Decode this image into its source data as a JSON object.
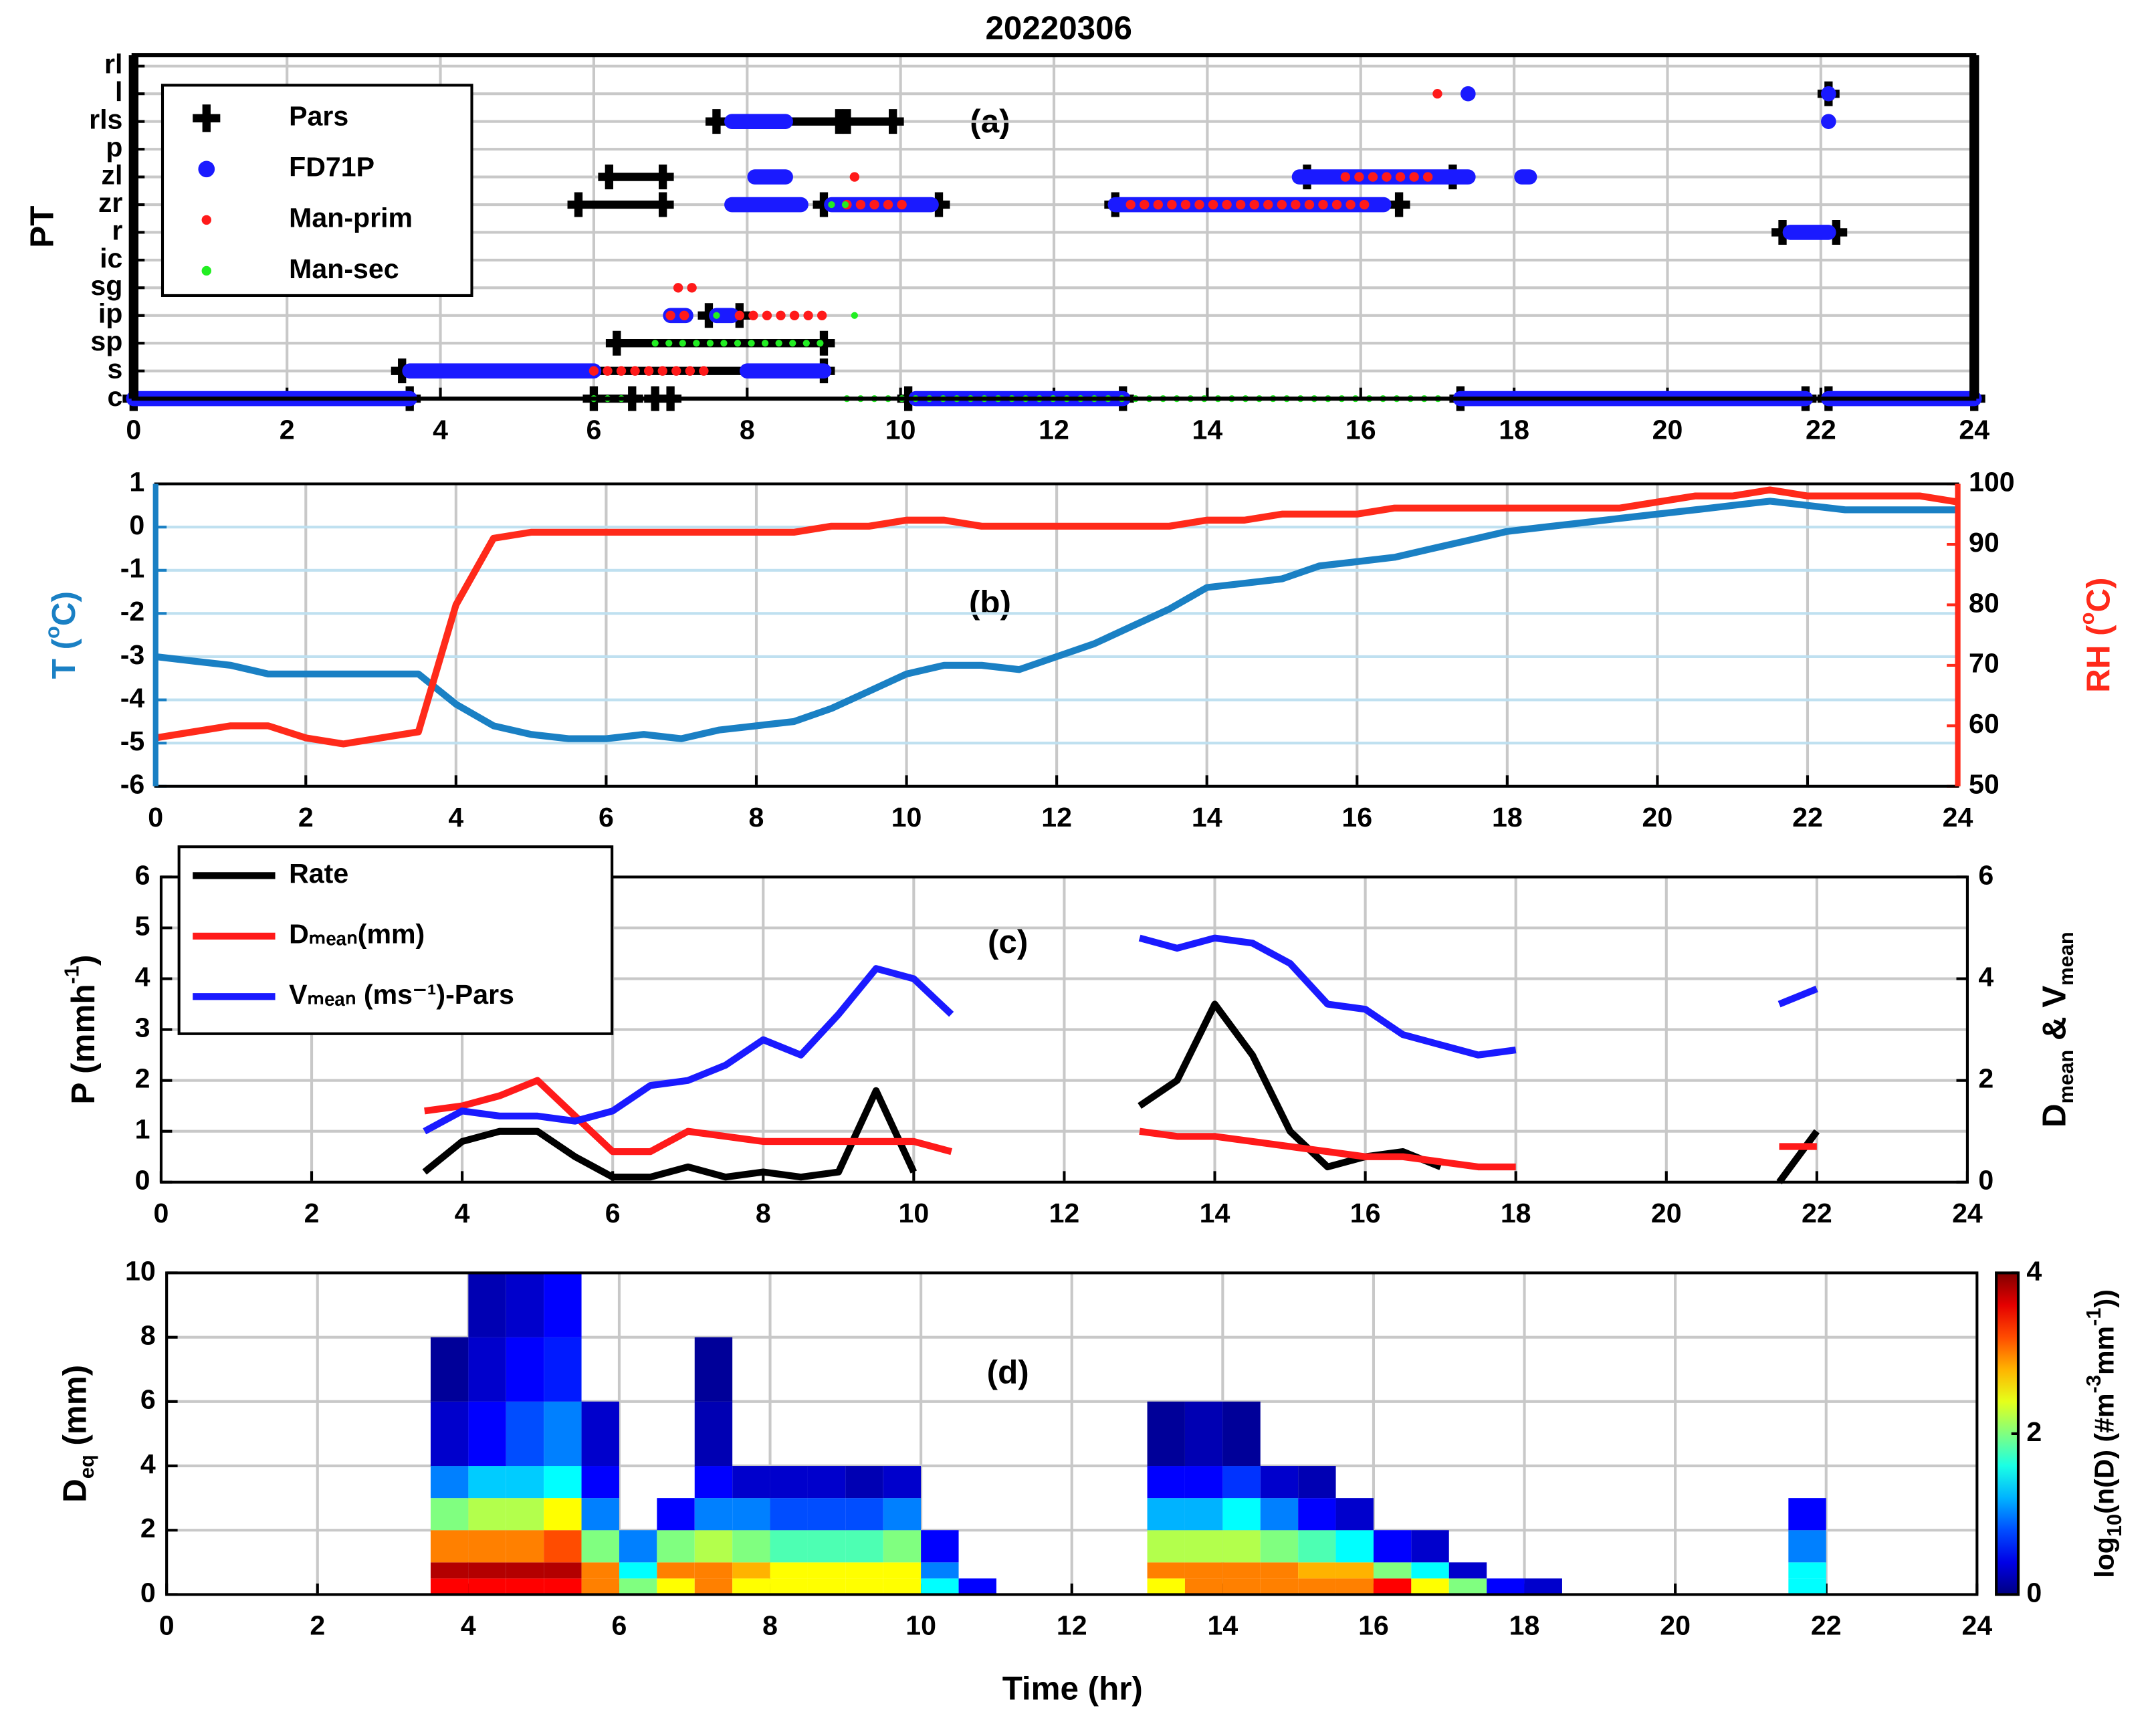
{
  "chart_data": [
    {
      "type": "timeline",
      "title": "20220306",
      "label": "(a)",
      "ylabel": "PT",
      "xlim": [
        0,
        24
      ],
      "xticks": [
        0,
        2,
        4,
        6,
        8,
        10,
        12,
        14,
        16,
        18,
        20,
        22,
        24
      ],
      "ylim": [
        0,
        12.4
      ],
      "yticks": [
        {
          "value": 0,
          "label": "c"
        },
        {
          "value": 1,
          "label": "s"
        },
        {
          "value": 2,
          "label": "sp"
        },
        {
          "value": 3,
          "label": "ip"
        },
        {
          "value": 4,
          "label": "sg"
        },
        {
          "value": 5,
          "label": "ic"
        },
        {
          "value": 6,
          "label": "r"
        },
        {
          "value": 7,
          "label": "zr"
        },
        {
          "value": 8,
          "label": "zl"
        },
        {
          "value": 9,
          "label": "p"
        },
        {
          "value": 10,
          "label": "rls"
        },
        {
          "value": 11,
          "label": "l"
        },
        {
          "value": 12,
          "label": "rl"
        }
      ],
      "grid": true,
      "legend": "upper left",
      "series": [
        {
          "name": "Pars",
          "color": "#000000",
          "marker": "plus",
          "start": [
            0,
            6.0,
            6.8,
            10.1,
            17.3,
            22.1,
            3.5,
            6.3,
            7.5,
            5.8,
            9.0,
            12.8,
            6.2,
            15.3,
            7.6,
            9.3,
            21.5,
            22.1
          ],
          "end": [
            3.6,
            6.5,
            7.0,
            12.9,
            21.8,
            24,
            9.0,
            9.0,
            7.9,
            6.9,
            10.5,
            16.5,
            6.9,
            17.2,
            9.2,
            9.9,
            22.2,
            22.1
          ],
          "y": [
            0,
            0,
            0,
            0,
            0,
            0,
            1,
            2,
            3,
            7,
            7,
            7,
            8,
            8,
            10,
            10,
            6,
            11
          ]
        },
        {
          "name": "FD71P",
          "color": "#1a1aff",
          "marker": "circle",
          "start": [
            0,
            10.2,
            17.3,
            22.1,
            3.6,
            8.0,
            7.0,
            7.6,
            7.8,
            9.1,
            12.8,
            8.1,
            15.2,
            18.1,
            7.8,
            22.1,
            21.6,
            17.4,
            22.1
          ],
          "end": [
            3.6,
            12.9,
            21.8,
            24,
            6.0,
            9.0,
            7.2,
            7.8,
            8.7,
            10.4,
            16.3,
            8.5,
            17.4,
            18.2,
            8.5,
            22.1,
            22.1,
            17.4,
            22.1
          ],
          "y": [
            0,
            0,
            0,
            0,
            1,
            1,
            3,
            3,
            7,
            7,
            7,
            8,
            8,
            8,
            10,
            10,
            6,
            11,
            11
          ]
        },
        {
          "name": "Man-prim",
          "color": "#ff1a1a",
          "marker": "dot",
          "start": [
            6.0,
            7.0,
            7.9,
            7.1,
            9.4,
            9.3,
            13.0,
            15.8,
            17.0
          ],
          "end": [
            7.5,
            7.2,
            9.1,
            7.3,
            9.4,
            10.1,
            16.1,
            17.0,
            17.0
          ],
          "y": [
            1,
            3,
            3,
            4,
            8,
            7,
            7,
            8,
            11
          ]
        },
        {
          "name": "Man-sec",
          "color": "#22ee22",
          "marker": "dot",
          "start": [
            6.0,
            9.3,
            6.8,
            7.6,
            9.4,
            9.1
          ],
          "end": [
            6.5,
            17.1,
            9.0,
            7.6,
            9.4,
            9.4
          ],
          "y": [
            0,
            0,
            2,
            3,
            3,
            7
          ]
        }
      ]
    },
    {
      "type": "line",
      "label": "(b)",
      "ylabel": [
        "T (",
        "o",
        "C)"
      ],
      "y2label": [
        "RH (",
        "o",
        "C)"
      ],
      "xlim": [
        0,
        24
      ],
      "xticks": [
        0,
        2,
        4,
        6,
        8,
        10,
        12,
        14,
        16,
        18,
        20,
        22,
        24
      ],
      "ylim": [
        -6,
        1
      ],
      "yticks": [
        -6,
        -5,
        -4,
        -3,
        -2,
        -1,
        0,
        1
      ],
      "y2lim": [
        50,
        100
      ],
      "y2ticks": [
        50,
        60,
        70,
        80,
        90,
        100
      ],
      "grid": true,
      "x": [
        0,
        0.5,
        1,
        1.5,
        2,
        2.5,
        3,
        3.5,
        4,
        4.5,
        5,
        5.5,
        6,
        6.5,
        7,
        7.5,
        8,
        8.5,
        9,
        9.5,
        10,
        10.5,
        11,
        11.5,
        12,
        12.5,
        13,
        13.5,
        14,
        14.5,
        15,
        15.5,
        16,
        16.5,
        17,
        17.5,
        18,
        18.5,
        19,
        19.5,
        20,
        20.5,
        21,
        21.5,
        22,
        22.5,
        23,
        23.5,
        24
      ],
      "series": [
        {
          "name": "T",
          "color": "#1a80c4",
          "axis": "y",
          "values": [
            -3.0,
            -3.1,
            -3.2,
            -3.4,
            -3.4,
            -3.4,
            -3.4,
            -3.4,
            -4.1,
            -4.6,
            -4.8,
            -4.9,
            -4.9,
            -4.8,
            -4.9,
            -4.7,
            -4.6,
            -4.5,
            -4.2,
            -3.8,
            -3.4,
            -3.2,
            -3.2,
            -3.3,
            -3.0,
            -2.7,
            -2.3,
            -1.9,
            -1.4,
            -1.3,
            -1.2,
            -0.9,
            -0.8,
            -0.7,
            -0.5,
            -0.3,
            -0.1,
            0.0,
            0.1,
            0.2,
            0.3,
            0.4,
            0.5,
            0.6,
            0.5,
            0.4,
            0.4,
            0.4,
            0.4
          ]
        },
        {
          "name": "RH",
          "color": "#ff2a1a",
          "axis": "y2",
          "values": [
            58,
            59,
            60,
            60,
            58,
            57,
            58,
            59,
            80,
            91,
            92,
            92,
            92,
            92,
            92,
            92,
            92,
            92,
            93,
            93,
            94,
            94,
            93,
            93,
            93,
            93,
            93,
            93,
            94,
            94,
            95,
            95,
            95,
            96,
            96,
            96,
            96,
            96,
            96,
            96,
            97,
            98,
            98,
            99,
            98,
            98,
            98,
            98,
            97
          ]
        }
      ]
    },
    {
      "type": "line",
      "label": "(c)",
      "ylabel": [
        "P  (mmh",
        "-1",
        ")"
      ],
      "y2label": [
        "D",
        "mean",
        " & V",
        "mean"
      ],
      "xlim": [
        0,
        24
      ],
      "xticks": [
        0,
        2,
        4,
        6,
        8,
        10,
        12,
        14,
        16,
        18,
        20,
        22,
        24
      ],
      "ylim": [
        0,
        6
      ],
      "yticks": [
        0,
        1,
        2,
        3,
        4,
        5,
        6
      ],
      "y2lim": [
        0,
        6
      ],
      "y2ticks": [
        0,
        2,
        4,
        6
      ],
      "grid": true,
      "legend": "upper left",
      "x": [
        0,
        0.5,
        1,
        1.5,
        2,
        2.5,
        3,
        3.5,
        4,
        4.5,
        5,
        5.5,
        6,
        6.5,
        7,
        7.5,
        8,
        8.5,
        9,
        9.5,
        10,
        10.5,
        11,
        11.5,
        12,
        12.5,
        13,
        13.5,
        14,
        14.5,
        15,
        15.5,
        16,
        16.5,
        17,
        17.5,
        18,
        18.5,
        19,
        19.5,
        20,
        20.5,
        21,
        21.5,
        22,
        22.5,
        23,
        23.5,
        24
      ],
      "series": [
        {
          "name": "Rate",
          "color": "#000000",
          "axis": "y",
          "values": [
            null,
            null,
            null,
            null,
            null,
            null,
            null,
            0.2,
            0.8,
            1.0,
            1.0,
            0.5,
            0.1,
            0.1,
            0.3,
            0.1,
            0.2,
            0.1,
            0.2,
            1.8,
            0.2,
            null,
            null,
            null,
            null,
            null,
            1.5,
            2.0,
            3.5,
            2.5,
            1.0,
            0.3,
            0.5,
            0.6,
            0.3,
            null,
            null,
            null,
            null,
            null,
            null,
            null,
            null,
            0.0,
            1.0,
            null,
            null,
            null,
            null
          ]
        },
        {
          "name": "Dₘₑₐₙ(mm)",
          "color": "#ff1a1a",
          "axis": "y2",
          "values": [
            null,
            null,
            null,
            null,
            null,
            null,
            null,
            1.4,
            1.5,
            1.7,
            2.0,
            1.3,
            0.6,
            0.6,
            1.0,
            0.9,
            0.8,
            0.8,
            0.8,
            0.8,
            0.8,
            0.6,
            null,
            null,
            null,
            null,
            1.0,
            0.9,
            0.9,
            0.8,
            0.7,
            0.6,
            0.5,
            0.5,
            0.4,
            0.3,
            0.3,
            null,
            null,
            null,
            null,
            null,
            null,
            0.7,
            0.7,
            null,
            null,
            null,
            null
          ]
        },
        {
          "name": "Vₘₑₐₙ (ms⁻¹)-Pars",
          "color": "#1a1aff",
          "axis": "y2",
          "values": [
            null,
            null,
            null,
            null,
            null,
            null,
            null,
            1.0,
            1.4,
            1.3,
            1.3,
            1.2,
            1.4,
            1.9,
            2.0,
            2.3,
            2.8,
            2.5,
            3.3,
            4.2,
            4.0,
            3.3,
            null,
            null,
            null,
            null,
            4.8,
            4.6,
            4.8,
            4.7,
            4.3,
            3.5,
            3.4,
            2.9,
            2.7,
            2.5,
            2.6,
            null,
            null,
            null,
            null,
            null,
            null,
            3.5,
            3.8,
            null,
            null,
            null,
            null
          ]
        }
      ]
    },
    {
      "type": "heatmap",
      "label": "(d)",
      "xlabel": "Time (hr)",
      "ylabel": [
        "D",
        "eq",
        " (mm)"
      ],
      "xlim": [
        0,
        24
      ],
      "xticks": [
        0,
        2,
        4,
        6,
        8,
        10,
        12,
        14,
        16,
        18,
        20,
        22,
        24
      ],
      "ylim": [
        0,
        10
      ],
      "yticks": [
        0,
        2,
        4,
        6,
        8,
        10
      ],
      "grid": true,
      "colormap": "jet",
      "clim": [
        0,
        4
      ],
      "cticks": [
        0,
        2,
        4
      ],
      "clabel": [
        "log",
        "10",
        "(n(D) (#m",
        "-3",
        "mm",
        "-1",
        "))"
      ],
      "xbins": [
        3.5,
        4,
        4.5,
        5,
        5.5,
        6,
        6.5,
        7,
        7.5,
        8,
        8.5,
        9,
        9.5,
        10,
        10.5,
        11,
        11.5,
        12,
        12.5,
        13,
        13.5,
        14,
        14.5,
        15,
        15.5,
        16,
        16.5,
        17,
        17.5,
        18,
        18.5,
        19,
        19.5,
        20,
        20.5,
        21,
        21.5,
        22,
        22.5
      ],
      "ybins": [
        0,
        0.5,
        1,
        2,
        3,
        4,
        6,
        8,
        10
      ],
      "values": [
        [
          3.5,
          3.5,
          3.5,
          3.5,
          3,
          2,
          2.5,
          3,
          2.5,
          2.5,
          2.5,
          2.5,
          2.5,
          1.5,
          0.5,
          null,
          null,
          null,
          null,
          2.5,
          3,
          3,
          3,
          3,
          3,
          3.5,
          2.5,
          2,
          0.5,
          0.3,
          null,
          null,
          null,
          null,
          null,
          null,
          1.5,
          null
        ],
        [
          3.8,
          3.8,
          3.8,
          3.8,
          3,
          1.5,
          3,
          3,
          2.8,
          2.5,
          2.5,
          2.5,
          2.5,
          1,
          null,
          null,
          null,
          null,
          null,
          3,
          3,
          3,
          3,
          2.8,
          2.8,
          2,
          1.5,
          0.3,
          null,
          null,
          null,
          null,
          null,
          null,
          null,
          null,
          1.5,
          null
        ],
        [
          3,
          3,
          3,
          3.2,
          2,
          1,
          2,
          2.2,
          2,
          1.8,
          1.8,
          1.8,
          2,
          0.5,
          null,
          null,
          null,
          null,
          null,
          2.2,
          2.2,
          2.2,
          2,
          1.8,
          1.5,
          0.5,
          0.3,
          null,
          null,
          null,
          null,
          null,
          null,
          null,
          null,
          null,
          1,
          null
        ],
        [
          2,
          2.2,
          2.2,
          2.5,
          1,
          null,
          0.5,
          1,
          1,
          0.8,
          0.8,
          0.8,
          1,
          null,
          null,
          null,
          null,
          null,
          null,
          1.2,
          1.2,
          1.5,
          1,
          0.5,
          0.3,
          null,
          null,
          null,
          null,
          null,
          null,
          null,
          null,
          null,
          null,
          null,
          0.5,
          null
        ],
        [
          1,
          1.3,
          1.3,
          1.5,
          0.5,
          null,
          null,
          0.5,
          0.3,
          0.3,
          0.3,
          0.2,
          0.3,
          null,
          null,
          null,
          null,
          null,
          null,
          0.5,
          0.5,
          0.7,
          0.3,
          0.2,
          null,
          null,
          null,
          null,
          null,
          null,
          null,
          null,
          null,
          null,
          null,
          null,
          null,
          null
        ],
        [
          0.3,
          0.5,
          0.8,
          1,
          0.3,
          null,
          null,
          0.2,
          null,
          null,
          null,
          null,
          null,
          null,
          null,
          null,
          null,
          null,
          null,
          0.1,
          0.2,
          0.1,
          null,
          null,
          null,
          null,
          null,
          null,
          null,
          null,
          null,
          null,
          null,
          null,
          null,
          null,
          null,
          null
        ],
        [
          0.1,
          0.3,
          0.5,
          0.6,
          null,
          null,
          null,
          0.1,
          null,
          null,
          null,
          null,
          null,
          null,
          null,
          null,
          null,
          null,
          null,
          null,
          null,
          null,
          null,
          null,
          null,
          null,
          null,
          null,
          null,
          null,
          null,
          null,
          null,
          null,
          null,
          null,
          null,
          null
        ],
        [
          null,
          0.2,
          0.3,
          0.5,
          null,
          null,
          null,
          null,
          null,
          null,
          null,
          null,
          null,
          null,
          null,
          null,
          null,
          null,
          null,
          null,
          null,
          null,
          null,
          null,
          null,
          null,
          null,
          null,
          null,
          null,
          null,
          null,
          null,
          null,
          null,
          null,
          null,
          null
        ]
      ]
    }
  ]
}
